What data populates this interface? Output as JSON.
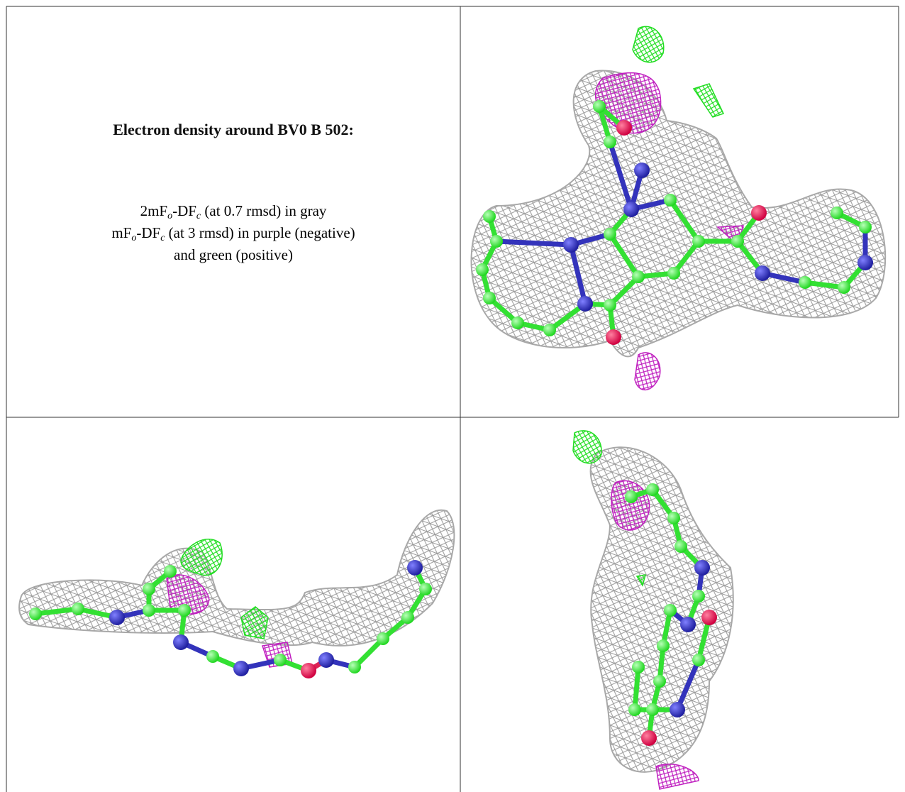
{
  "panel": {
    "title": "Electron density around BV0 B 502:",
    "lines": [
      [
        "2mF",
        "o",
        "-DF",
        "c",
        " (at 0.7 rmsd) in gray"
      ],
      [
        "mF",
        "o",
        "-DF",
        "c",
        " (at 3 rmsd) in purple (negative)"
      ],
      [
        "and green (positive)"
      ]
    ]
  }
}
